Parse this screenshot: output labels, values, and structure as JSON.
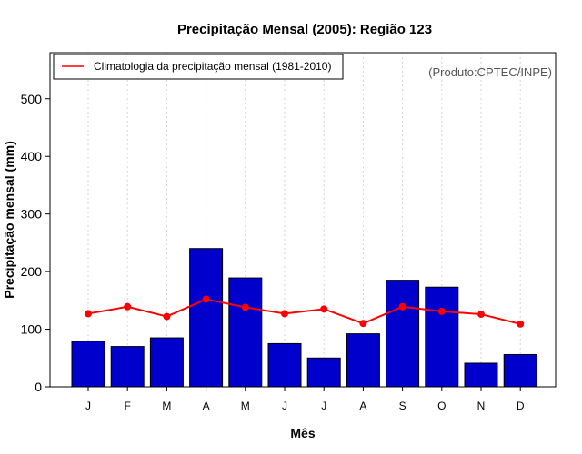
{
  "chart_data": {
    "type": "bar",
    "title": "Precipitação Mensal (2005): Região 123",
    "xlabel": "Mês",
    "ylabel": "Precipitação mensal (mm)",
    "product_label": "(Produto:CPTEC/INPE)",
    "categories": [
      "J",
      "F",
      "M",
      "A",
      "M",
      "J",
      "J",
      "A",
      "S",
      "O",
      "N",
      "D"
    ],
    "ylim": [
      0,
      580
    ],
    "yticks": [
      0,
      100,
      200,
      300,
      400,
      500
    ],
    "grid": "vertical dotted",
    "legend_position": "top-left",
    "series": [
      {
        "name": "Precipitação mensal (2005)",
        "kind": "bar",
        "color": "#0000CD",
        "values": [
          79,
          70,
          85,
          240,
          189,
          75,
          50,
          92,
          185,
          173,
          41,
          56
        ]
      },
      {
        "name": "Climatologia da precipitação mensal (1981-2010)",
        "kind": "line",
        "color": "#FF0000",
        "values": [
          127,
          139,
          122,
          152,
          138,
          127,
          135,
          110,
          139,
          131,
          126,
          109
        ]
      }
    ]
  }
}
